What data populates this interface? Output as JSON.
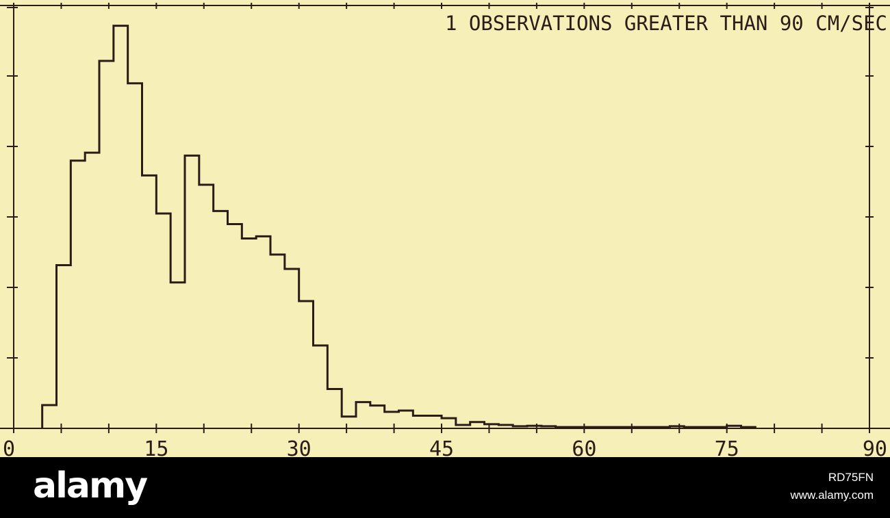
{
  "colors": {
    "background": "#f6efb7",
    "ink": "#2b1c17",
    "footer": "#000000",
    "footer_text": "#ffffff"
  },
  "chart_data": {
    "type": "bar",
    "style": "step-histogram",
    "annotation": "1 OBSERVATIONS GREATER THAN 90 CM/SEC",
    "xlim": [
      0,
      90
    ],
    "x_ticks": [
      0,
      15,
      30,
      45,
      60,
      75,
      90
    ],
    "x_minor_step": 5,
    "y_ticks_count": 6,
    "ylim": [
      0,
      100
    ],
    "grid": false,
    "bin_width": 1.5,
    "bin_starts": [
      3,
      4.5,
      6,
      7.5,
      9,
      10.5,
      12,
      13.5,
      15,
      16.5,
      18,
      19.5,
      21,
      22.5,
      24,
      25.5,
      27,
      28.5,
      30,
      31.5,
      33,
      34.5,
      36,
      37.5,
      39,
      40.5,
      42,
      43.5,
      45,
      46.5,
      48,
      49.5,
      51,
      52.5,
      54,
      55.5,
      57,
      58.5,
      60,
      61.5,
      63,
      64.5,
      66,
      67.5,
      69,
      70.5,
      72,
      73.5,
      75,
      76.5
    ],
    "values": [
      5.5,
      38.6,
      63.3,
      65.2,
      86.9,
      95.2,
      81.6,
      59.8,
      50.8,
      34.5,
      64.5,
      57.6,
      51.4,
      48.3,
      44.9,
      45.4,
      41.1,
      37.7,
      30.1,
      19.6,
      9.3,
      2.8,
      6.2,
      5.4,
      3.9,
      4.2,
      3.0,
      3.0,
      2.4,
      0.8,
      1.5,
      1.0,
      0.8,
      0.5,
      0.6,
      0.5,
      0.3,
      0.3,
      0.3,
      0.3,
      0.3,
      0.3,
      0.3,
      0.3,
      0.5,
      0.3,
      0.3,
      0.3,
      0.6,
      0.3
    ]
  },
  "watermark": {
    "logo": "alamy",
    "image_id": "RD75FN",
    "url": "www.alamy.com"
  }
}
